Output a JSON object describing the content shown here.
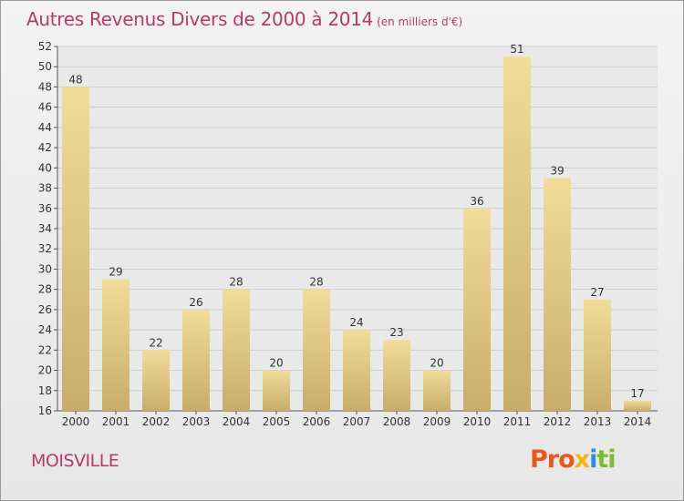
{
  "header": {
    "title": "Autres Revenus Divers de 2000 à 2014",
    "subtitle": "(en milliers d'€)"
  },
  "footer": {
    "town": "MOISVILLE",
    "logo": "Proxiti",
    "logo_parts": [
      "Pro",
      "x",
      "i",
      "ti"
    ]
  },
  "colors": {
    "title": "#b53a6a",
    "bar_light": "#f1dc99",
    "bar_dark": "#c8ad6a",
    "grid": "#cfcfcf",
    "logo": [
      "#e8591f",
      "#f3b417",
      "#2e8ed8",
      "#7cbd2f"
    ]
  },
  "chart_data": {
    "type": "bar",
    "title": "Autres Revenus Divers de 2000 à 2014",
    "subtitle": "(en milliers d'€)",
    "categories": [
      "2000",
      "2001",
      "2002",
      "2003",
      "2004",
      "2005",
      "2006",
      "2007",
      "2008",
      "2009",
      "2010",
      "2011",
      "2012",
      "2013",
      "2014"
    ],
    "values": [
      48,
      29,
      22,
      26,
      28,
      20,
      28,
      24,
      23,
      20,
      36,
      51,
      39,
      27,
      17
    ],
    "data_labels": [
      "48",
      "29",
      "22",
      "26",
      "28",
      "20",
      "28",
      "24",
      "23",
      "20",
      "36",
      "51",
      "39",
      "27",
      "17"
    ],
    "ylim": [
      16,
      52
    ],
    "yticks": [
      16,
      18,
      20,
      22,
      24,
      26,
      28,
      30,
      32,
      34,
      36,
      38,
      40,
      42,
      44,
      46,
      48,
      50,
      52
    ],
    "xlabel": "",
    "ylabel": "",
    "grid": true,
    "legend": "none"
  }
}
